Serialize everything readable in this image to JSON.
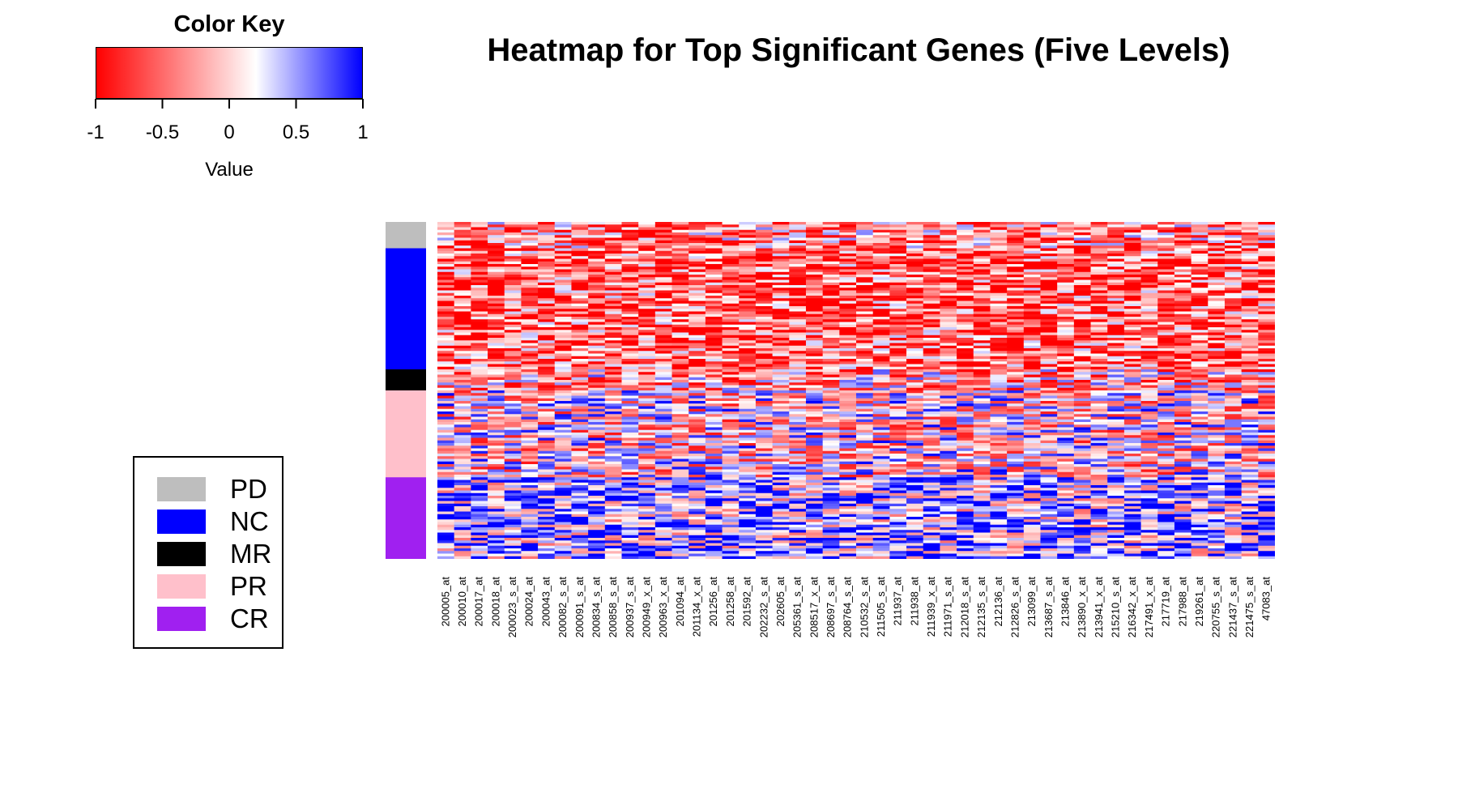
{
  "title": "Heatmap for Top Significant Genes (Five Levels)",
  "color_key": {
    "title": "Color Key",
    "xlabel": "Value",
    "ticks": [
      "-1",
      "-0.5",
      "0",
      "0.5",
      "1"
    ],
    "tick_values": [
      -1,
      -0.5,
      0,
      0.5,
      1
    ],
    "colors": {
      "low": "#ff0000",
      "mid": "#ffffff",
      "high": "#0000ff"
    }
  },
  "legend": {
    "items": [
      {
        "label": "PD",
        "color": "#bebebe"
      },
      {
        "label": "NC",
        "color": "#0000ff"
      },
      {
        "label": "MR",
        "color": "#000000"
      },
      {
        "label": "PR",
        "color": "#ffc0cb"
      },
      {
        "label": "CR",
        "color": "#a020f0"
      }
    ]
  },
  "chart_data": {
    "type": "heatmap",
    "title": "Heatmap for Top Significant Genes (Five Levels)",
    "value_range": [
      -1,
      1
    ],
    "rows": 128,
    "group_order": [
      "PD",
      "NC",
      "MR",
      "PR",
      "CR"
    ],
    "group_row_counts": [
      10,
      46,
      8,
      33,
      31
    ],
    "column_labels": [
      "200005_at",
      "200010_at",
      "200017_at",
      "200018_at",
      "200023_s_at",
      "200024_at",
      "200043_at",
      "200082_s_at",
      "200091_s_at",
      "200834_s_at",
      "200858_s_at",
      "200937_s_at",
      "200949_x_at",
      "200963_x_at",
      "201094_at",
      "201134_x_at",
      "201256_at",
      "201258_at",
      "201592_at",
      "202232_s_at",
      "202605_at",
      "205361_s_at",
      "208517_x_at",
      "208697_s_at",
      "208764_s_at",
      "210532_s_at",
      "211505_s_at",
      "211937_at",
      "211938_at",
      "211939_x_at",
      "211971_s_at",
      "212018_s_at",
      "212135_s_at",
      "212136_at",
      "212826_s_at",
      "213099_at",
      "213687_s_at",
      "213846_at",
      "213890_x_at",
      "213941_x_at",
      "215210_s_at",
      "216342_x_at",
      "217491_x_at",
      "217719_at",
      "217988_at",
      "219261_at",
      "220755_s_at",
      "221437_s_at",
      "221475_s_at",
      "47083_at"
    ]
  }
}
